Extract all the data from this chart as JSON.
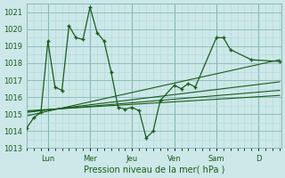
{
  "title": "Pression niveau de la mer( hPa )",
  "background_color": "#cce8e8",
  "grid_color_minor": "#b0d8d8",
  "grid_color_major": "#88b8b8",
  "line_color": "#1a5c1a",
  "ylim": [
    1013,
    1021.5
  ],
  "yticks": [
    1013,
    1014,
    1015,
    1016,
    1017,
    1018,
    1019,
    1020,
    1021
  ],
  "day_labels": [
    "Lun",
    "Mer",
    "Jeu",
    "Ven",
    "Sam",
    "D"
  ],
  "day_x": [
    24,
    72,
    120,
    168,
    216,
    264
  ],
  "xlim": [
    0,
    290
  ],
  "n_points": 29,
  "main_series_x": [
    0,
    8,
    16,
    24,
    32,
    40,
    48,
    56,
    64,
    72,
    80,
    88,
    96,
    104,
    112,
    120,
    128,
    136,
    144,
    152,
    168,
    176,
    184,
    192,
    216,
    224,
    232,
    256,
    288
  ],
  "main_series_y": [
    1014.2,
    1014.8,
    1015.1,
    1019.3,
    1016.6,
    1016.4,
    1020.2,
    1019.5,
    1019.4,
    1021.3,
    1019.8,
    1019.3,
    1017.5,
    1015.4,
    1015.3,
    1015.4,
    1015.2,
    1013.6,
    1014.0,
    1015.8,
    1016.7,
    1016.5,
    1016.8,
    1016.6,
    1019.5,
    1019.5,
    1018.8,
    1018.2,
    1018.1
  ],
  "trend_lines": [
    {
      "x": [
        0,
        288
      ],
      "y": [
        1014.9,
        1018.2
      ]
    },
    {
      "x": [
        0,
        288
      ],
      "y": [
        1015.1,
        1016.9
      ]
    },
    {
      "x": [
        0,
        288
      ],
      "y": [
        1015.15,
        1016.4
      ]
    },
    {
      "x": [
        0,
        288
      ],
      "y": [
        1015.2,
        1016.1
      ]
    }
  ],
  "xlabel_fontsize": 7,
  "tick_fontsize": 6
}
